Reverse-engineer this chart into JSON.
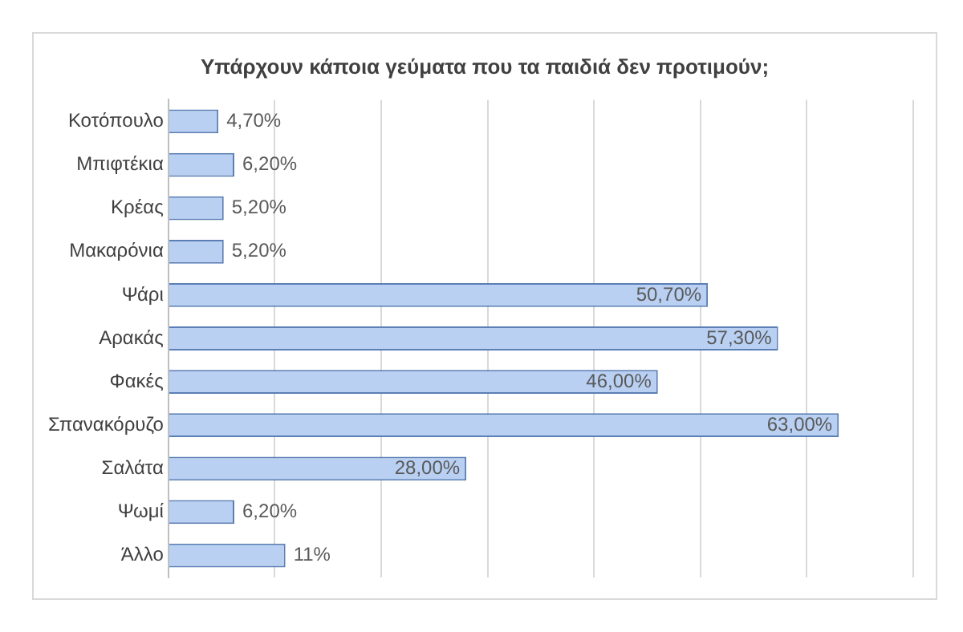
{
  "chart_data": {
    "type": "bar",
    "orientation": "horizontal",
    "title": "Υπάρχουν κάποια γεύματα που τα παιδιά δεν προτιμούν;",
    "categories": [
      "Κοτόπουλο",
      "Μπιφτέκια",
      "Κρέας",
      "Μακαρόνια",
      "Ψάρι",
      "Αρακάς",
      "Φακές",
      "Σπανακόρυζο",
      "Σαλάτα",
      "Ψωμί",
      "Άλλο"
    ],
    "values": [
      4.7,
      6.2,
      5.2,
      5.2,
      50.7,
      57.3,
      46.0,
      63.0,
      28.0,
      6.2,
      11
    ],
    "value_labels": [
      "4,70%",
      "6,20%",
      "5,20%",
      "5,20%",
      "50,70%",
      "57,30%",
      "46,00%",
      "63,00%",
      "28,00%",
      "6,20%",
      "11%"
    ],
    "color": "#b9d0f3",
    "xlim": [
      0,
      70
    ],
    "xticks": [
      {
        "value": 0,
        "label": null
      },
      {
        "value": 10,
        "label": null
      },
      {
        "value": 20,
        "label": null
      },
      {
        "value": 30,
        "label": null
      },
      {
        "value": 40,
        "label": null
      },
      {
        "value": 50,
        "label": null
      },
      {
        "value": 60,
        "label": null
      },
      {
        "value": 70,
        "label": null
      }
    ],
    "tick_labels": "y",
    "grid": "x",
    "legend": false
  }
}
